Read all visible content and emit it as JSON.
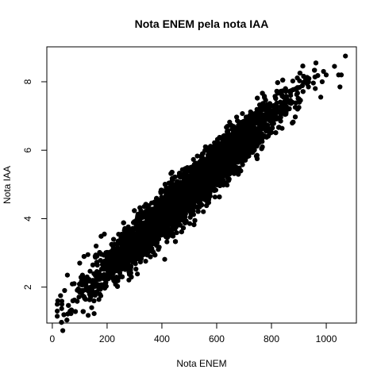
{
  "chart_data": {
    "type": "scatter",
    "title": "Nota ENEM pela nota IAA",
    "xlabel": "Nota ENEM",
    "ylabel": "Nota IAA",
    "xlim": [
      -20,
      1110
    ],
    "ylim": [
      0.95,
      9.02
    ],
    "x_ticks": [
      0,
      200,
      400,
      600,
      800,
      1000
    ],
    "y_ticks": [
      2,
      4,
      6,
      8
    ],
    "x_tick_labels": [
      "0",
      "200",
      "400",
      "600",
      "800",
      "1000"
    ],
    "y_tick_labels": [
      "2",
      "4",
      "6",
      "8"
    ],
    "grid": false,
    "legend": "none",
    "point_color": "#000000",
    "series": [
      {
        "trend": {
          "intercept": 1.0,
          "slope": 0.00755
        },
        "points": [
          [
            18,
            1.15
          ],
          [
            18,
            1.3
          ],
          [
            18,
            1.5
          ],
          [
            20,
            1.6
          ],
          [
            35,
            1.5
          ],
          [
            30,
            1.75
          ],
          [
            45,
            1.9
          ],
          [
            55,
            2.35
          ],
          [
            65,
            1.3
          ],
          [
            75,
            1.6
          ],
          [
            80,
            2.1
          ],
          [
            95,
            1.95
          ],
          [
            100,
            2.7
          ],
          [
            110,
            2.35
          ],
          [
            130,
            2.95
          ],
          [
            140,
            2.0
          ],
          [
            160,
            3.2
          ],
          [
            190,
            3.55
          ],
          [
            230,
            2.5
          ],
          [
            270,
            3.15
          ],
          [
            330,
            4.1
          ],
          [
            350,
            3.6
          ],
          [
            430,
            4.45
          ],
          [
            460,
            4.2
          ],
          [
            520,
            5.1
          ],
          [
            560,
            4.6
          ],
          [
            600,
            5.6
          ],
          [
            650,
            5.9
          ],
          [
            700,
            6.35
          ],
          [
            760,
            6.6
          ],
          [
            790,
            6.9
          ],
          [
            850,
            7.4
          ],
          [
            870,
            7.6
          ],
          [
            900,
            7.5
          ],
          [
            935,
            7.85
          ],
          [
            960,
            7.8
          ],
          [
            980,
            7.55
          ],
          [
            985,
            8.0
          ],
          [
            990,
            8.3
          ],
          [
            1000,
            8.2
          ],
          [
            1030,
            8.45
          ],
          [
            1045,
            8.2
          ],
          [
            1055,
            8.2
          ],
          [
            1050,
            7.85
          ],
          [
            1070,
            8.75
          ]
        ]
      }
    ],
    "cloud_points_count": 7000
  }
}
